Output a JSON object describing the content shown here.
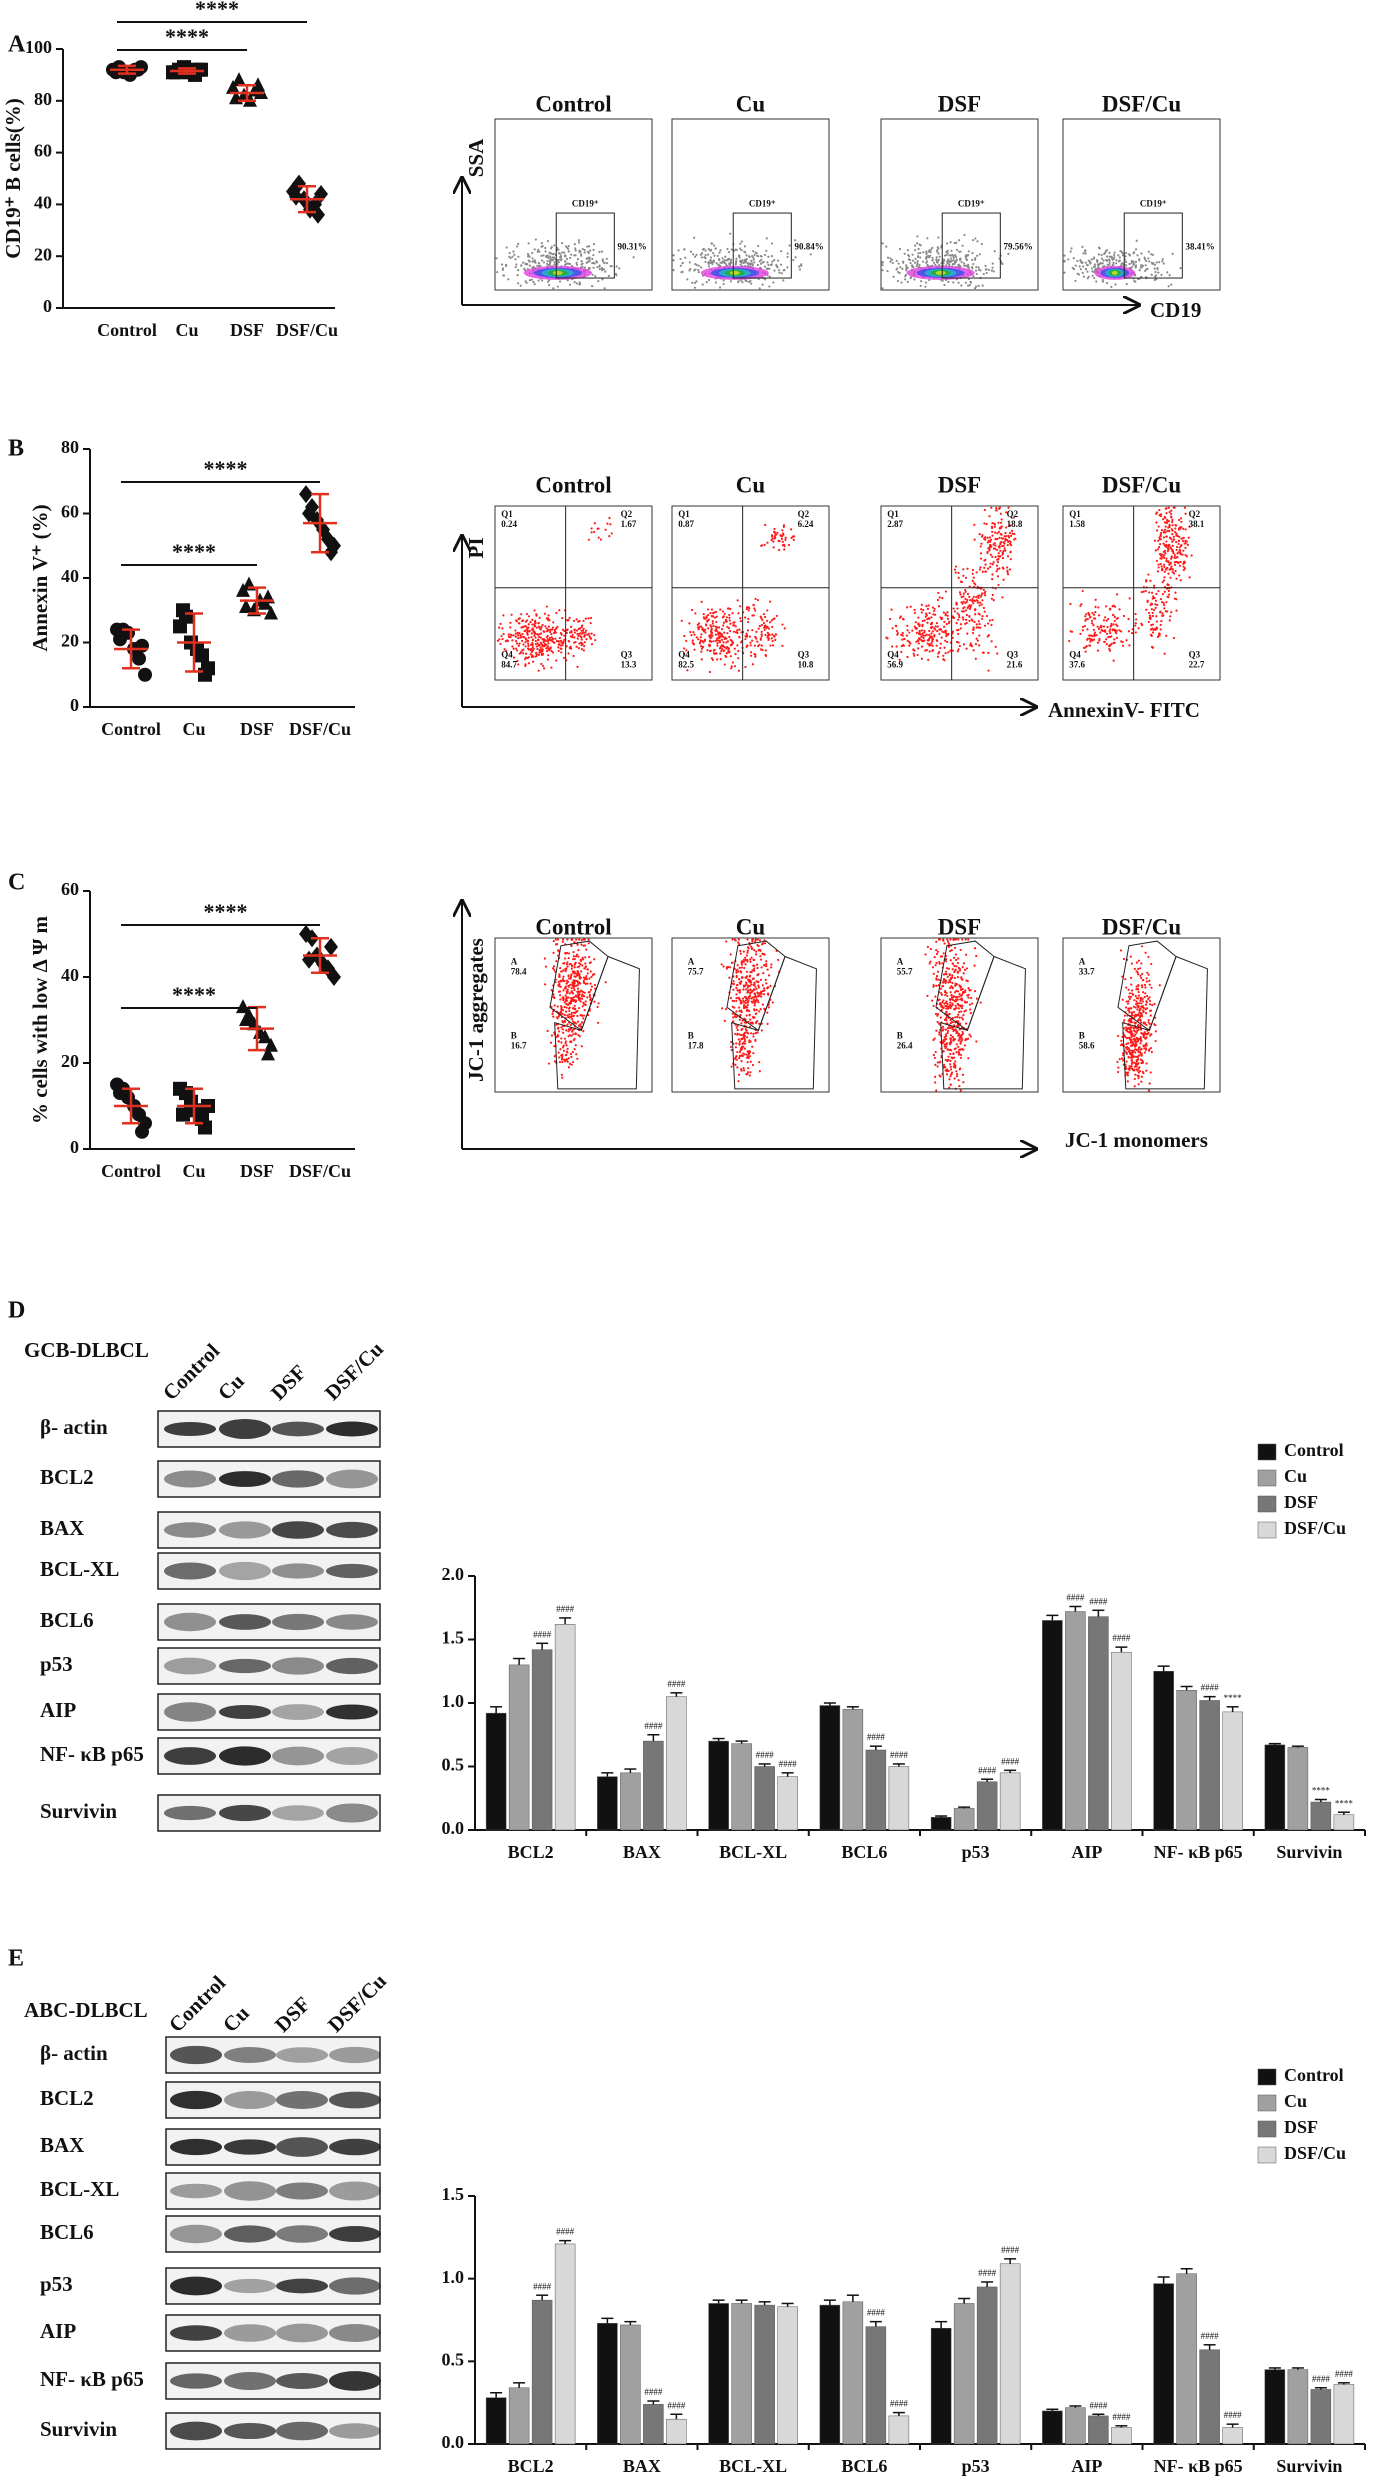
{
  "panel_labels": [
    "A",
    "B",
    "C",
    "D",
    "E"
  ],
  "chart_data": [
    {
      "type": "dotplot",
      "ylabel": "CD19⁺ B cells(%)",
      "categories": [
        "Control",
        "Cu",
        "DSF",
        "DSF/Cu"
      ],
      "values": [
        [
          92,
          93,
          91,
          90,
          92,
          93,
          91,
          92
        ],
        [
          91,
          92,
          93,
          91,
          90,
          92,
          91,
          92
        ],
        [
          85,
          88,
          82,
          80,
          84,
          83,
          81,
          86
        ],
        [
          45,
          48,
          42,
          38,
          40,
          44,
          43,
          36
        ]
      ],
      "means": [
        92,
        91.5,
        83,
        42
      ],
      "errors": [
        1.5,
        1,
        3,
        5
      ],
      "color": "#111111",
      "error_color": "#e03020",
      "ylim": [
        0,
        100
      ],
      "yticks": [
        0,
        20,
        40,
        60,
        80,
        100
      ],
      "annotations": [
        "****",
        "****"
      ]
    },
    {
      "type": "dotplot",
      "ylabel": "Annexin V⁺ (%)",
      "categories": [
        "Control",
        "Cu",
        "DSF",
        "DSF/Cu"
      ],
      "values": [
        [
          24,
          24,
          23,
          18,
          15,
          10,
          21,
          19
        ],
        [
          25,
          28,
          20,
          18,
          16,
          12,
          30,
          10
        ],
        [
          36,
          38,
          30,
          33,
          32,
          29,
          31,
          34
        ],
        [
          66,
          62,
          58,
          55,
          52,
          50,
          60,
          48
        ]
      ],
      "means": [
        18,
        20,
        33,
        57
      ],
      "errors": [
        6,
        9,
        4,
        9
      ],
      "color": "#111111",
      "error_color": "#e03020",
      "ylim": [
        0,
        80
      ],
      "yticks": [
        0,
        20,
        40,
        60,
        80
      ],
      "annotations": [
        "****",
        "****"
      ]
    },
    {
      "type": "dotplot",
      "ylabel": "% cells with low Δ Ψ m",
      "categories": [
        "Control",
        "Cu",
        "DSF",
        "DSF/Cu"
      ],
      "values": [
        [
          15,
          14,
          12,
          10,
          8,
          6,
          13,
          4
        ],
        [
          14,
          13,
          11,
          9,
          7,
          10,
          8,
          5
        ],
        [
          33,
          31,
          29,
          27,
          26,
          24,
          30,
          22
        ],
        [
          50,
          49,
          45,
          43,
          42,
          40,
          44,
          47
        ]
      ],
      "means": [
        10,
        10,
        28,
        45
      ],
      "errors": [
        4,
        4,
        5,
        4
      ],
      "color": "#111111",
      "error_color": "#e03020",
      "ylim": [
        0,
        60
      ],
      "yticks": [
        0,
        20,
        40,
        60
      ],
      "annotations": [
        "****",
        "****"
      ]
    },
    {
      "type": "bar",
      "categories": [
        "BCL2",
        "BAX",
        "BCL-XL",
        "BCL6",
        "p53",
        "AIP",
        "NF- κB p65",
        "Survivin"
      ],
      "series": [
        {
          "name": "Control",
          "color": "#111111",
          "values": [
            0.92,
            0.42,
            0.7,
            0.98,
            0.1,
            1.65,
            1.25,
            0.67
          ],
          "errors": [
            0.05,
            0.03,
            0.02,
            0.02,
            0.01,
            0.04,
            0.04,
            0.01
          ]
        },
        {
          "name": "Cu",
          "color": "#a0a0a0",
          "values": [
            1.3,
            0.45,
            0.68,
            0.95,
            0.17,
            1.72,
            1.1,
            0.65
          ],
          "errors": [
            0.05,
            0.03,
            0.02,
            0.02,
            0.01,
            0.04,
            0.03,
            0.01
          ],
          "annotations": [
            null,
            null,
            null,
            null,
            null,
            "####",
            null,
            null
          ]
        },
        {
          "name": "DSF",
          "color": "#777777",
          "values": [
            1.42,
            0.7,
            0.5,
            0.63,
            0.38,
            1.68,
            1.02,
            0.22
          ],
          "errors": [
            0.05,
            0.05,
            0.02,
            0.03,
            0.02,
            0.05,
            0.03,
            0.02
          ],
          "annotations": [
            "####",
            "####",
            "####",
            "####",
            "####",
            "####",
            "####",
            "****"
          ]
        },
        {
          "name": "DSF/Cu",
          "color": "#d8d8d8",
          "values": [
            1.62,
            1.05,
            0.42,
            0.5,
            0.45,
            1.4,
            0.93,
            0.12
          ],
          "errors": [
            0.05,
            0.03,
            0.03,
            0.02,
            0.02,
            0.04,
            0.04,
            0.02
          ],
          "annotations": [
            "####",
            "####",
            "####",
            "####",
            "####",
            "####",
            "****",
            "****"
          ]
        }
      ],
      "ylim": [
        0,
        2
      ],
      "yticks": [
        {
          "value": 0,
          "label": "0.0"
        },
        {
          "value": 0.5,
          "label": "0.5"
        },
        {
          "value": 1,
          "label": "1.0"
        },
        {
          "value": 1.5,
          "label": "1.5"
        },
        {
          "value": 2,
          "label": "2.0"
        }
      ],
      "legend": "upper right"
    },
    {
      "type": "bar",
      "categories": [
        "BCL2",
        "BAX",
        "BCL-XL",
        "BCL6",
        "p53",
        "AIP",
        "NF- κB p65",
        "Survivin"
      ],
      "series": [
        {
          "name": "Control",
          "color": "#111111",
          "values": [
            0.28,
            0.73,
            0.85,
            0.84,
            0.7,
            0.2,
            0.97,
            0.45
          ],
          "errors": [
            0.03,
            0.03,
            0.02,
            0.03,
            0.04,
            0.01,
            0.04,
            0.01
          ]
        },
        {
          "name": "Cu",
          "color": "#a0a0a0",
          "values": [
            0.34,
            0.72,
            0.85,
            0.86,
            0.85,
            0.22,
            1.03,
            0.45
          ],
          "errors": [
            0.03,
            0.02,
            0.02,
            0.04,
            0.03,
            0.01,
            0.03,
            0.01
          ]
        },
        {
          "name": "DSF",
          "color": "#777777",
          "values": [
            0.87,
            0.24,
            0.84,
            0.71,
            0.95,
            0.17,
            0.57,
            0.33
          ],
          "errors": [
            0.03,
            0.02,
            0.02,
            0.03,
            0.03,
            0.01,
            0.03,
            0.01
          ],
          "annotations": [
            "####",
            "####",
            null,
            "####",
            "####",
            "####",
            "####",
            "####"
          ]
        },
        {
          "name": "DSF/Cu",
          "color": "#d8d8d8",
          "values": [
            1.21,
            0.15,
            0.83,
            0.17,
            1.09,
            0.1,
            0.1,
            0.36
          ],
          "errors": [
            0.02,
            0.03,
            0.02,
            0.02,
            0.03,
            0.01,
            0.02,
            0.01
          ],
          "annotations": [
            "####",
            "####",
            null,
            "####",
            "####",
            "####",
            "####",
            "####"
          ]
        }
      ],
      "ylim": [
        0,
        1.5
      ],
      "yticks": [
        {
          "value": 0,
          "label": "0.0"
        },
        {
          "value": 0.5,
          "label": "0.5"
        },
        {
          "value": 1,
          "label": "1.0"
        },
        {
          "value": 1.5,
          "label": "1.5"
        }
      ],
      "legend": "upper right"
    }
  ],
  "flow_panels": [
    {
      "y_axis": "SSA",
      "x_axis": "CD19",
      "plots": [
        {
          "title": "Control",
          "gate": "CD19⁺",
          "percent": "90.31%"
        },
        {
          "title": "Cu",
          "gate": "CD19⁺",
          "percent": "90.84%"
        },
        {
          "title": "DSF",
          "gate": "CD19⁺",
          "percent": "79.56%"
        },
        {
          "title": "DSF/Cu",
          "gate": "CD19⁺",
          "percent": "38.41%"
        }
      ]
    },
    {
      "y_axis": "PI",
      "x_axis": "AnnexinV- FITC",
      "plots": [
        {
          "title": "Control",
          "quadrants": [
            [
              "Q1",
              "0.24"
            ],
            [
              "Q2",
              "1.67"
            ],
            [
              "Q4",
              "84.7"
            ],
            [
              "Q3",
              "13.3"
            ]
          ]
        },
        {
          "title": "Cu",
          "quadrants": [
            [
              "Q1",
              "0.87"
            ],
            [
              "Q2",
              "6.24"
            ],
            [
              "Q4",
              "82.5"
            ],
            [
              "Q3",
              "10.8"
            ]
          ]
        },
        {
          "title": "DSF",
          "quadrants": [
            [
              "Q1",
              "2.87"
            ],
            [
              "Q2",
              "18.8"
            ],
            [
              "Q4",
              "56.9"
            ],
            [
              "Q3",
              "21.6"
            ]
          ]
        },
        {
          "title": "DSF/Cu",
          "quadrants": [
            [
              "Q1",
              "1.58"
            ],
            [
              "Q2",
              "38.1"
            ],
            [
              "Q4",
              "37.6"
            ],
            [
              "Q3",
              "22.7"
            ]
          ]
        }
      ]
    },
    {
      "y_axis": "JC-1 aggregates",
      "x_axis": "JC-1 monomers",
      "plots": [
        {
          "title": "Control",
          "gates": [
            [
              "A",
              "78.4"
            ],
            [
              "B",
              "16.7"
            ]
          ]
        },
        {
          "title": "Cu",
          "gates": [
            [
              "A",
              "75.7"
            ],
            [
              "B",
              "17.8"
            ]
          ]
        },
        {
          "title": "DSF",
          "gates": [
            [
              "A",
              "55.7"
            ],
            [
              "B",
              "26.4"
            ]
          ]
        },
        {
          "title": "DSF/Cu",
          "gates": [
            [
              "A",
              "33.7"
            ],
            [
              "B",
              "58.6"
            ]
          ]
        }
      ]
    }
  ],
  "blots": [
    {
      "title": "GCB-DLBCL",
      "lanes": [
        "Control",
        "Cu",
        "DSF",
        "DSF/Cu"
      ],
      "rows": [
        "β- actin",
        "BCL2",
        "BAX",
        "BCL-XL",
        "BCL6",
        "p53",
        "AIP",
        "NF- κB p65",
        "Survivin"
      ]
    },
    {
      "title": "ABC-DLBCL",
      "lanes": [
        "Control",
        "Cu",
        "DSF",
        "DSF/Cu"
      ],
      "rows": [
        "β- actin",
        "BCL2",
        "BAX",
        "BCL-XL",
        "BCL6",
        "p53",
        "AIP",
        "NF- κB p65",
        "Survivin"
      ]
    }
  ]
}
